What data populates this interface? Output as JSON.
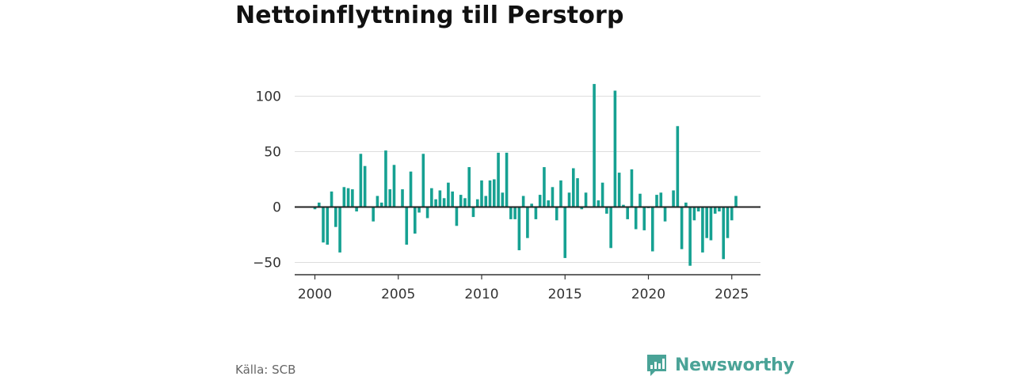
{
  "title": "Nettoinflyttning till Perstorp",
  "source": "Källa: SCB",
  "brand": {
    "name": "Newsworthy",
    "logo_icon": "newsworthy-chart-logo-icon",
    "color": "#4aa397"
  },
  "chart_data": {
    "type": "bar",
    "bar_color": "#16a192",
    "zero_line_color": "#222222",
    "grid": true,
    "ylim": [
      -58,
      118
    ],
    "xlim": [
      1998.75,
      2026.75
    ],
    "y_ticks": [
      100,
      50,
      0,
      -50
    ],
    "y_tick_labels": [
      "100",
      "50",
      "0",
      "−50"
    ],
    "x_ticks": [
      2000,
      2005,
      2010,
      2015,
      2020,
      2025
    ],
    "x_tick_labels": [
      "2000",
      "2005",
      "2010",
      "2015",
      "2020",
      "2025"
    ],
    "x": [
      "2000-01",
      "2000-04",
      "2000-07",
      "2000-10",
      "2001-01",
      "2001-04",
      "2001-07",
      "2001-10",
      "2002-01",
      "2002-04",
      "2002-07",
      "2002-10",
      "2003-01",
      "2003-04",
      "2003-07",
      "2003-10",
      "2004-01",
      "2004-04",
      "2004-07",
      "2004-10",
      "2005-01",
      "2005-04",
      "2005-07",
      "2005-10",
      "2006-01",
      "2006-04",
      "2006-07",
      "2006-10",
      "2007-01",
      "2007-04",
      "2007-07",
      "2007-10",
      "2008-01",
      "2008-04",
      "2008-07",
      "2008-10",
      "2009-01",
      "2009-04",
      "2009-07",
      "2009-10",
      "2010-01",
      "2010-04",
      "2010-07",
      "2010-10",
      "2011-01",
      "2011-04",
      "2011-07",
      "2011-10",
      "2012-01",
      "2012-04",
      "2012-07",
      "2012-10",
      "2013-01",
      "2013-04",
      "2013-07",
      "2013-10",
      "2014-01",
      "2014-04",
      "2014-07",
      "2014-10",
      "2015-01",
      "2015-04",
      "2015-07",
      "2015-10",
      "2016-01",
      "2016-04",
      "2016-07",
      "2016-10",
      "2017-01",
      "2017-04",
      "2017-07",
      "2017-10",
      "2018-01",
      "2018-04",
      "2018-07",
      "2018-10",
      "2019-01",
      "2019-04",
      "2019-07",
      "2019-10",
      "2020-01",
      "2020-04",
      "2020-07",
      "2020-10",
      "2021-01",
      "2021-04",
      "2021-07",
      "2021-10",
      "2022-01",
      "2022-04",
      "2022-07",
      "2022-10",
      "2023-01",
      "2023-04",
      "2023-07",
      "2023-10",
      "2024-01",
      "2024-04",
      "2024-07",
      "2024-10",
      "2025-01",
      "2025-04"
    ],
    "values": [
      -2,
      4,
      -32,
      -34,
      14,
      -18,
      -41,
      18,
      17,
      16,
      -4,
      48,
      37,
      0,
      -13,
      10,
      4,
      51,
      16,
      38,
      0,
      16,
      -34,
      32,
      -24,
      -5,
      48,
      -10,
      17,
      7,
      15,
      8,
      22,
      14,
      -17,
      11,
      8,
      36,
      -9,
      7,
      24,
      10,
      24,
      25,
      49,
      13,
      49,
      -11,
      -11,
      -39,
      10,
      -28,
      3,
      -11,
      11,
      36,
      6,
      18,
      -12,
      24,
      -46,
      13,
      35,
      26,
      -2,
      13,
      0,
      111,
      6,
      22,
      -6,
      -37,
      105,
      31,
      2,
      -11,
      34,
      -20,
      12,
      -21,
      -1,
      -40,
      11,
      13,
      -13,
      0,
      15,
      73,
      -38,
      4,
      -53,
      -12,
      -4,
      -41,
      -28,
      -30,
      -6,
      -4,
      -47,
      -28,
      -12,
      10
    ]
  }
}
